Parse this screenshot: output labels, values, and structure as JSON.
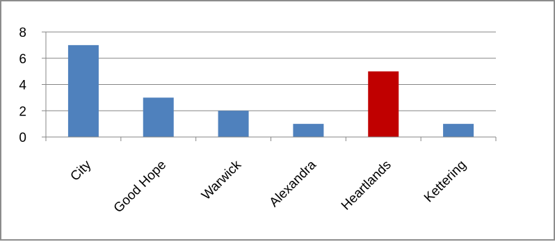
{
  "chart_data": {
    "type": "bar",
    "title": "",
    "xlabel": "",
    "ylabel": "",
    "categories": [
      "City",
      "Good Hope",
      "Warwick",
      "Alexandra",
      "Heartlands",
      "Kettering"
    ],
    "values": [
      7,
      3,
      2,
      1,
      5,
      1
    ],
    "ylim": [
      0,
      8
    ],
    "yticks": [
      0,
      2,
      4,
      6,
      8
    ],
    "grid": true,
    "legend": "none",
    "colors": {
      "default_bar": "#4f81bd",
      "highlight_bar": "#c00000",
      "gridline": "#868686",
      "axis": "#868686"
    },
    "highlighted_category": "Heartlands"
  }
}
